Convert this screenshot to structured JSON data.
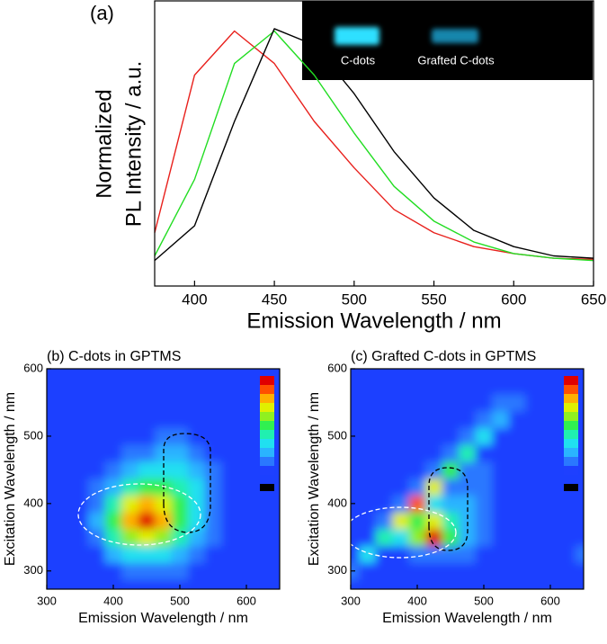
{
  "chart_data": [
    {
      "type": "line",
      "title": "(a)",
      "x": [
        375,
        400,
        425,
        450,
        475,
        500,
        525,
        550,
        575,
        600,
        625,
        650
      ],
      "series": [
        {
          "color": "#e8201c",
          "values": [
            0.12,
            0.8,
            0.99,
            0.85,
            0.6,
            0.4,
            0.22,
            0.12,
            0.06,
            0.03,
            0.01,
            0.005
          ]
        },
        {
          "color": "#22dd22",
          "values": [
            0.02,
            0.35,
            0.85,
            0.99,
            0.8,
            0.55,
            0.32,
            0.17,
            0.08,
            0.03,
            0.01,
            0.0
          ]
        },
        {
          "color": "#000000",
          "values": [
            0.0,
            0.15,
            0.6,
            1.0,
            0.93,
            0.72,
            0.47,
            0.27,
            0.13,
            0.06,
            0.02,
            0.01
          ]
        }
      ],
      "xlim": [
        375,
        650
      ],
      "xticks": [
        400,
        450,
        500,
        550,
        600,
        650
      ],
      "ylim": [
        -0.11,
        1.12
      ],
      "xlabel": "Emission Wavelength / nm",
      "ylabel": [
        "Normalized",
        "PL Intensity / a.u."
      ],
      "annotations": [
        "C-dots",
        "Grafted C-dots"
      ]
    },
    {
      "type": "heatmap",
      "title": "(b) C-dots in GPTMS",
      "x": [
        300,
        325,
        350,
        375,
        400,
        425,
        450,
        475,
        500,
        525,
        550,
        575,
        600,
        625,
        650
      ],
      "y": [
        275,
        300,
        325,
        350,
        375,
        400,
        425,
        450,
        475,
        500,
        525,
        550,
        575,
        600
      ],
      "z": [
        [
          0,
          0,
          0,
          0,
          0,
          0,
          0,
          0,
          0,
          0,
          0,
          0,
          0,
          0,
          0
        ],
        [
          0,
          0,
          0,
          0,
          0,
          1,
          1,
          1,
          1,
          0,
          0,
          0,
          0,
          0,
          0
        ],
        [
          0,
          0,
          0,
          0,
          2,
          3,
          3,
          3,
          2,
          1,
          0,
          0,
          0,
          0,
          0
        ],
        [
          0,
          0,
          0,
          1,
          4,
          6,
          7,
          6,
          4,
          2,
          1,
          0,
          0,
          0,
          0
        ],
        [
          0,
          0,
          0,
          2,
          5,
          8,
          10,
          8,
          5,
          3,
          1,
          0,
          0,
          0,
          0
        ],
        [
          0,
          0,
          0,
          1,
          4,
          7,
          8,
          7,
          5,
          3,
          1,
          0,
          0,
          0,
          0
        ],
        [
          0,
          0,
          0,
          1,
          2,
          4,
          5,
          5,
          4,
          3,
          1,
          0,
          0,
          0,
          0
        ],
        [
          0,
          0,
          0,
          0,
          1,
          2,
          3,
          3,
          3,
          2,
          1,
          0,
          0,
          0,
          0
        ],
        [
          0,
          0,
          0,
          0,
          0,
          1,
          1,
          2,
          2,
          1,
          0,
          0,
          0,
          0,
          0
        ],
        [
          0,
          0,
          0,
          0,
          0,
          0,
          0,
          1,
          1,
          0,
          0,
          0,
          0,
          0,
          0
        ],
        [
          0,
          0,
          0,
          0,
          0,
          0,
          0,
          0,
          0,
          0,
          0,
          0,
          0,
          0,
          0
        ],
        [
          0,
          0,
          0,
          0,
          0,
          0,
          0,
          0,
          0,
          0,
          0,
          0,
          0,
          0,
          0
        ],
        [
          0,
          0,
          0,
          0,
          0,
          0,
          0,
          0,
          0,
          0,
          0,
          0,
          0,
          0,
          0
        ],
        [
          0,
          0,
          0,
          0,
          0,
          0,
          0,
          0,
          0,
          0,
          0,
          0,
          0,
          0,
          0
        ]
      ],
      "colors": [
        "#1e40ff",
        "#2a78ff",
        "#2ab4ff",
        "#20e0f0",
        "#20f0b0",
        "#30f050",
        "#90f020",
        "#e0f000",
        "#ffb000",
        "#ff5000",
        "#e00000"
      ],
      "xlim": [
        300,
        650
      ],
      "xticks": [
        300,
        400,
        500,
        600
      ],
      "ylim": [
        273,
        600
      ],
      "yticks": [
        300,
        400,
        500,
        600
      ],
      "xlabel": "Emission Wavelength / nm",
      "ylabel": "Excitation Wavelength / nm"
    },
    {
      "type": "heatmap",
      "title": "(c) Grafted C-dots in GPTMS",
      "x": [
        300,
        325,
        350,
        375,
        400,
        425,
        450,
        475,
        500,
        525,
        550,
        575,
        600,
        625,
        650
      ],
      "y": [
        275,
        300,
        325,
        350,
        375,
        400,
        425,
        450,
        475,
        500,
        525,
        550,
        575,
        600
      ],
      "z": [
        [
          0,
          0,
          0,
          0,
          0,
          0,
          0,
          0,
          0,
          0,
          0,
          0,
          0,
          0,
          0
        ],
        [
          1,
          0,
          0,
          0,
          0,
          0,
          0,
          0,
          0,
          0,
          0,
          0,
          0,
          0,
          0
        ],
        [
          0,
          3,
          0,
          0,
          1,
          1,
          1,
          1,
          0,
          0,
          0,
          0,
          0,
          0,
          1
        ],
        [
          0,
          0,
          4,
          3,
          6,
          10,
          5,
          2,
          1,
          0,
          0,
          0,
          0,
          0,
          0
        ],
        [
          0,
          0,
          1,
          7,
          5,
          7,
          4,
          2,
          1,
          0,
          0,
          0,
          0,
          0,
          0
        ],
        [
          0,
          0,
          0,
          1,
          9,
          3,
          2,
          2,
          1,
          0,
          0,
          0,
          0,
          0,
          0
        ],
        [
          0,
          0,
          0,
          0,
          1,
          7,
          1,
          1,
          1,
          0,
          0,
          0,
          0,
          0,
          0
        ],
        [
          0,
          0,
          0,
          0,
          0,
          1,
          5,
          1,
          1,
          0,
          0,
          0,
          0,
          0,
          0
        ],
        [
          0,
          0,
          0,
          0,
          0,
          0,
          1,
          4,
          0,
          0,
          0,
          0,
          0,
          0,
          0
        ],
        [
          0,
          0,
          0,
          0,
          0,
          0,
          0,
          1,
          3,
          0,
          0,
          0,
          0,
          0,
          0
        ],
        [
          0,
          0,
          0,
          0,
          0,
          0,
          0,
          0,
          1,
          2,
          0,
          0,
          0,
          0,
          0
        ],
        [
          0,
          0,
          0,
          0,
          0,
          0,
          0,
          0,
          0,
          1,
          1,
          0,
          0,
          0,
          0
        ],
        [
          0,
          0,
          0,
          0,
          0,
          0,
          0,
          0,
          0,
          0,
          0,
          0,
          0,
          0,
          0
        ],
        [
          0,
          0,
          0,
          0,
          0,
          0,
          0,
          0,
          0,
          0,
          0,
          0,
          0,
          0,
          0
        ]
      ],
      "colors": [
        "#1e40ff",
        "#2a78ff",
        "#2ab4ff",
        "#20e0f0",
        "#20f0b0",
        "#30f050",
        "#90f020",
        "#e0f000",
        "#ffb000",
        "#ff5000",
        "#e00000"
      ],
      "xlim": [
        300,
        650
      ],
      "xticks": [
        300,
        400,
        500,
        600
      ],
      "ylim": [
        273,
        600
      ],
      "yticks": [
        300,
        400,
        500,
        600
      ],
      "xlabel": "Emission Wavelength / nm",
      "ylabel": "Excitation Wavelength / nm"
    }
  ]
}
